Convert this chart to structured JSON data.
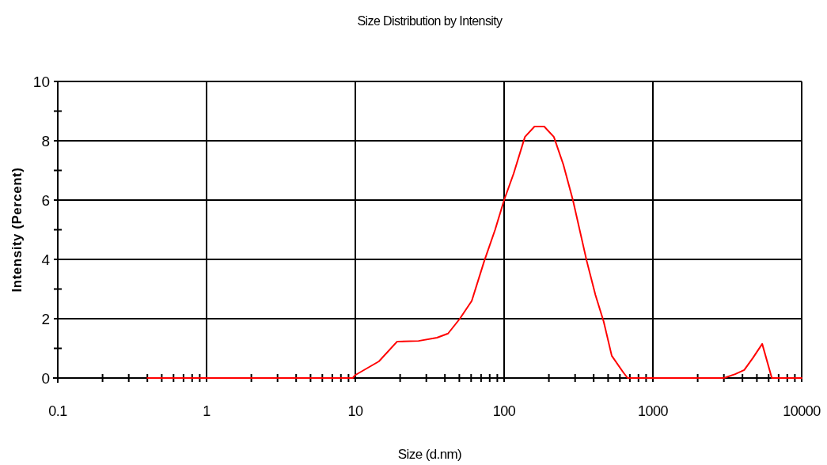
{
  "chart_data": {
    "type": "line",
    "title": "Size Distribution by Intensity",
    "xlabel": "Size (d.nm)",
    "ylabel": "Intensity (Percent)",
    "log": "x",
    "grid": true,
    "marker": "none",
    "line_style": "solid",
    "xlim": [
      0.1,
      10000
    ],
    "ylim": [
      0,
      10
    ],
    "xticks": [
      0.1,
      {
        "value": 0.2,
        "label": null
      },
      {
        "value": 0.3,
        "label": null
      },
      {
        "value": 0.4,
        "label": null
      },
      {
        "value": 0.5,
        "label": null
      },
      {
        "value": 0.6,
        "label": null
      },
      {
        "value": 0.7,
        "label": null
      },
      {
        "value": 0.8,
        "label": null
      },
      {
        "value": 0.9,
        "label": null
      },
      1,
      {
        "value": 2,
        "label": null
      },
      {
        "value": 3,
        "label": null
      },
      {
        "value": 4,
        "label": null
      },
      {
        "value": 5,
        "label": null
      },
      {
        "value": 6,
        "label": null
      },
      {
        "value": 7,
        "label": null
      },
      {
        "value": 8,
        "label": null
      },
      {
        "value": 9,
        "label": null
      },
      10,
      {
        "value": 20,
        "label": null
      },
      {
        "value": 30,
        "label": null
      },
      {
        "value": 40,
        "label": null
      },
      {
        "value": 50,
        "label": null
      },
      {
        "value": 60,
        "label": null
      },
      {
        "value": 70,
        "label": null
      },
      {
        "value": 80,
        "label": null
      },
      {
        "value": 90,
        "label": null
      },
      100,
      {
        "value": 200,
        "label": null
      },
      {
        "value": 300,
        "label": null
      },
      {
        "value": 400,
        "label": null
      },
      {
        "value": 500,
        "label": null
      },
      {
        "value": 600,
        "label": null
      },
      {
        "value": 700,
        "label": null
      },
      {
        "value": 800,
        "label": null
      },
      {
        "value": 900,
        "label": null
      },
      1000,
      {
        "value": 2000,
        "label": null
      },
      {
        "value": 3000,
        "label": null
      },
      {
        "value": 4000,
        "label": null
      },
      {
        "value": 5000,
        "label": null
      },
      {
        "value": 6000,
        "label": null
      },
      {
        "value": 7000,
        "label": null
      },
      {
        "value": 8000,
        "label": null
      },
      {
        "value": 9000,
        "label": null
      },
      10000
    ],
    "yticks": [
      0,
      {
        "value": 1,
        "label": null
      },
      2,
      {
        "value": 3,
        "label": null
      },
      4,
      {
        "value": 5,
        "label": null
      },
      6,
      {
        "value": 7,
        "label": null
      },
      8,
      {
        "value": 9,
        "label": null
      },
      10
    ],
    "series": [
      {
        "color": "#ff0000",
        "x": [
          0.4,
          1,
          5,
          9.6,
          10,
          14.4,
          19.1,
          26.6,
          35.4,
          42,
          50.4,
          60.6,
          73.6,
          87,
          100,
          116,
          138,
          160,
          186,
          216,
          250,
          290,
          359,
          411,
          467,
          529,
          630,
          676,
          1000,
          3000,
          3570,
          4110,
          4690,
          5430,
          6300,
          10000
        ],
        "values": [
          0,
          0,
          0,
          0,
          0.1,
          0.56,
          1.23,
          1.25,
          1.36,
          1.5,
          2.0,
          2.6,
          3.95,
          5.0,
          6.0,
          6.9,
          8.13,
          8.48,
          8.48,
          8.13,
          7.2,
          6.0,
          3.95,
          2.8,
          1.9,
          0.75,
          0.2,
          0,
          0,
          0,
          0.13,
          0.27,
          0.67,
          1.15,
          0,
          0
        ]
      }
    ]
  }
}
